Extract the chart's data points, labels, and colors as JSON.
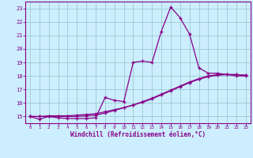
{
  "xlabel": "Windchill (Refroidissement éolien,°C)",
  "bg_color": "#cceeff",
  "line_color": "#880088",
  "grid_color": "#99cccc",
  "xlim": [
    -0.5,
    23.5
  ],
  "ylim": [
    14.5,
    23.5
  ],
  "yticks": [
    15,
    16,
    17,
    18,
    19,
    20,
    21,
    22,
    23
  ],
  "xticks": [
    0,
    1,
    2,
    3,
    4,
    5,
    6,
    7,
    8,
    9,
    10,
    11,
    12,
    13,
    14,
    15,
    16,
    17,
    18,
    19,
    20,
    21,
    22,
    23
  ],
  "curve1_x": [
    0,
    1,
    2,
    3,
    4,
    5,
    6,
    7,
    8,
    9,
    10,
    11,
    12,
    13,
    14,
    15,
    16,
    17,
    18,
    19,
    20,
    21,
    22,
    23
  ],
  "curve1_y": [
    15.0,
    14.8,
    15.0,
    14.9,
    14.85,
    14.85,
    14.85,
    14.9,
    16.4,
    16.2,
    16.1,
    19.0,
    19.1,
    19.0,
    21.3,
    23.1,
    22.3,
    21.1,
    18.6,
    18.2,
    18.2,
    18.1,
    18.0,
    18.0
  ],
  "curve2_x": [
    0,
    1,
    2,
    3,
    4,
    5,
    6,
    7,
    8,
    9,
    10,
    11,
    12,
    13,
    14,
    15,
    16,
    17,
    18,
    19,
    20,
    21,
    22,
    23
  ],
  "curve2_y": [
    15.0,
    15.0,
    15.05,
    15.05,
    15.05,
    15.1,
    15.15,
    15.2,
    15.35,
    15.5,
    15.65,
    15.85,
    16.05,
    16.3,
    16.6,
    16.9,
    17.2,
    17.5,
    17.75,
    17.95,
    18.05,
    18.1,
    18.1,
    18.05
  ],
  "curve3_x": [
    0,
    1,
    2,
    3,
    4,
    5,
    6,
    7,
    8,
    9,
    10,
    11,
    12,
    13,
    14,
    15,
    16,
    17,
    18,
    19,
    20,
    21,
    22,
    23
  ],
  "curve3_y": [
    15.0,
    15.0,
    15.0,
    15.0,
    15.0,
    15.0,
    15.05,
    15.1,
    15.25,
    15.45,
    15.65,
    15.85,
    16.1,
    16.35,
    16.65,
    16.95,
    17.25,
    17.55,
    17.8,
    18.0,
    18.1,
    18.1,
    18.1,
    18.05
  ]
}
